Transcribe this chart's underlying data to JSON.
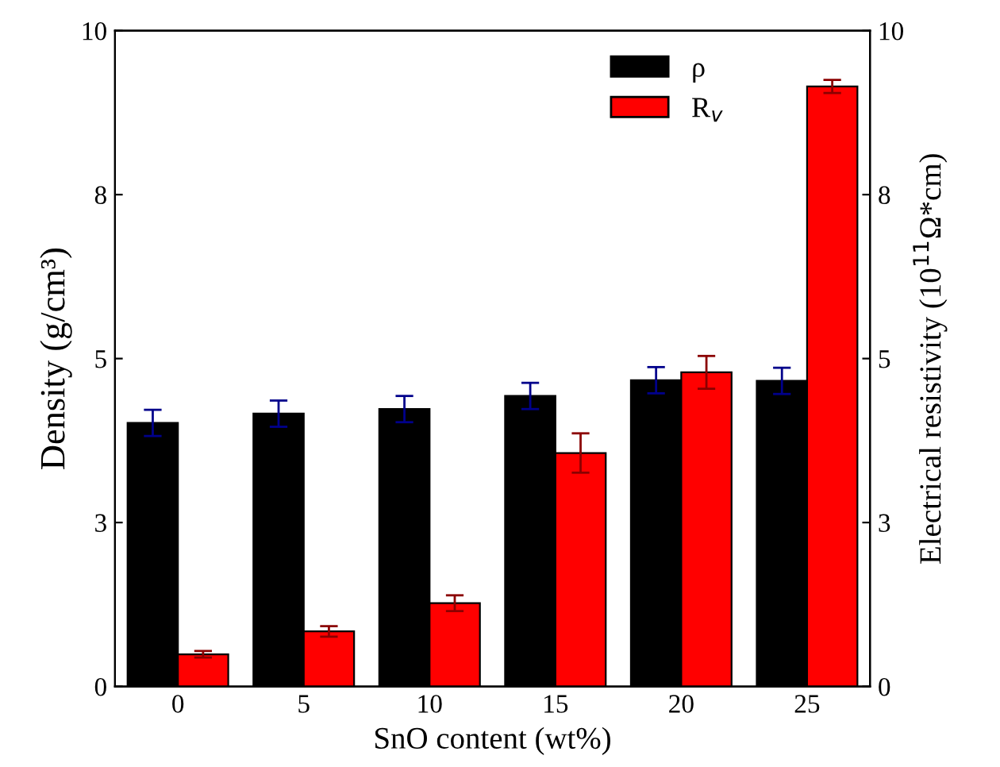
{
  "chart_data": {
    "type": "bar",
    "xlabel": "SnO content (wt%)",
    "ylabel": "Density (g/cm³)",
    "y2label": "Electrical resistivity (10$^{11}$Ω*cm)",
    "categories": [
      "0",
      "5",
      "10",
      "15",
      "20",
      "25"
    ],
    "series": [
      {
        "name": "ρ",
        "color": "#000000",
        "values": [
          4.02,
          4.16,
          4.23,
          4.43,
          4.67,
          4.66
        ],
        "errors": [
          0.2,
          0.2,
          0.2,
          0.2,
          0.2,
          0.2
        ]
      },
      {
        "name": "R$_{v}$",
        "color": "#ff0000",
        "axis": "y2",
        "values": [
          0.49,
          0.84,
          1.27,
          3.56,
          4.79,
          9.15
        ],
        "errors": [
          0.05,
          0.08,
          0.12,
          0.3,
          0.25,
          0.1
        ]
      }
    ],
    "ylim": [
      0,
      10
    ],
    "yticks": [
      0,
      {
        "value": 2.5,
        "label": "3"
      },
      5,
      {
        "value": 7.5,
        "label": "8"
      },
      10
    ],
    "y2lim": [
      0,
      10
    ],
    "y2ticks": [
      0,
      {
        "value": 2.5,
        "label": "3"
      },
      5,
      {
        "value": 7.5,
        "label": "8"
      },
      10
    ],
    "legend": "top right",
    "grid": false
  }
}
